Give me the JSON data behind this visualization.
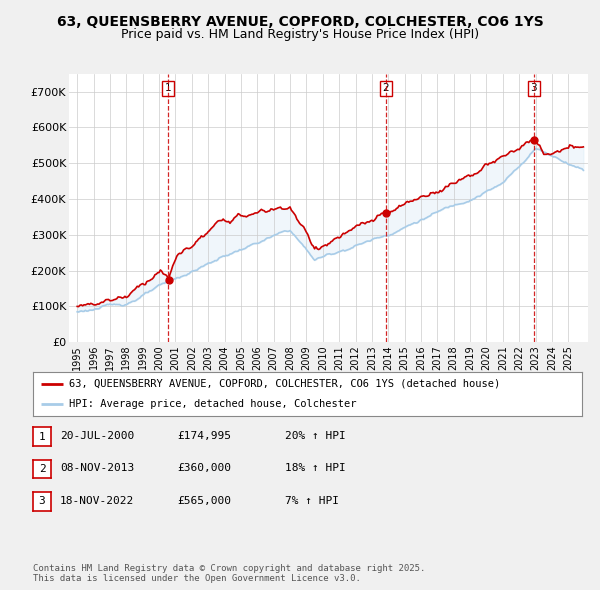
{
  "title": "63, QUEENSBERRY AVENUE, COPFORD, COLCHESTER, CO6 1YS",
  "subtitle": "Price paid vs. HM Land Registry's House Price Index (HPI)",
  "ylim": [
    0,
    750000
  ],
  "yticks": [
    0,
    100000,
    200000,
    300000,
    400000,
    500000,
    600000,
    700000
  ],
  "ytick_labels": [
    "£0",
    "£100K",
    "£200K",
    "£300K",
    "£400K",
    "£500K",
    "£600K",
    "£700K"
  ],
  "hpi_color": "#a8cce8",
  "price_color": "#cc0000",
  "fill_color": "#d6e8f5",
  "vline_color": "#cc0000",
  "background_color": "#f0f0f0",
  "plot_bg_color": "#ffffff",
  "grid_color": "#cccccc",
  "sale_dates": [
    2000.55,
    2013.85,
    2022.88
  ],
  "sale_prices": [
    174995,
    360000,
    565000
  ],
  "sale_labels": [
    "1",
    "2",
    "3"
  ],
  "legend_line1": "63, QUEENSBERRY AVENUE, COPFORD, COLCHESTER, CO6 1YS (detached house)",
  "legend_line2": "HPI: Average price, detached house, Colchester",
  "table_rows": [
    [
      "1",
      "20-JUL-2000",
      "£174,995",
      "20% ↑ HPI"
    ],
    [
      "2",
      "08-NOV-2013",
      "£360,000",
      "18% ↑ HPI"
    ],
    [
      "3",
      "18-NOV-2022",
      "£565,000",
      "7% ↑ HPI"
    ]
  ],
  "footnote": "Contains HM Land Registry data © Crown copyright and database right 2025.\nThis data is licensed under the Open Government Licence v3.0.",
  "title_fontsize": 10,
  "subtitle_fontsize": 9
}
